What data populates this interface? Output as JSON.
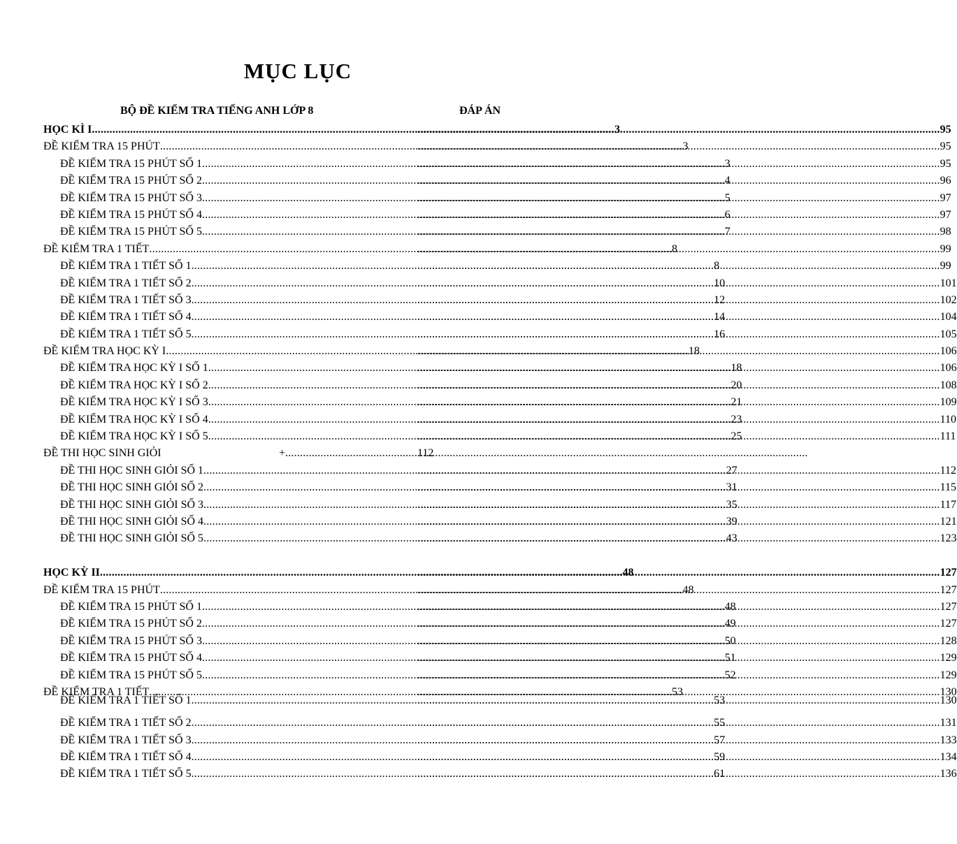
{
  "title": "MỤC LỤC",
  "header": {
    "left": "BỘ ĐỀ KIỂM TRA TIẾNG ANH LỚP 8",
    "right": "ĐÁP ÁN"
  },
  "rows": [
    {
      "label": "HỌC KÌ I ",
      "page": "3",
      "answer": "95",
      "bold": true
    },
    {
      "label": "ĐỀ KIỂM TRA 15 PHÚT",
      "page": "3",
      "answer": "95"
    },
    {
      "label": "ĐỀ KIỂM TRA 15 PHÚT SỐ 1 ",
      "page": "3",
      "answer": "95",
      "indent": true
    },
    {
      "label": "ĐỀ KIỂM TRA 15 PHÚT SỐ 2 ",
      "page": "4",
      "answer": "96",
      "indent": true
    },
    {
      "label": "ĐỀ KIỂM TRA 15 PHÚT SỐ 3 ",
      "page": "5",
      "answer": "97",
      "indent": true
    },
    {
      "label": "ĐỀ KIỂM TRA 15 PHÚT SỐ 4 ",
      "page": "6",
      "answer": "97",
      "indent": true
    },
    {
      "label": "ĐỀ KIỂM TRA 15 PHÚT SỐ 5 ",
      "page": "7",
      "answer": "98",
      "indent": true
    },
    {
      "label": "ĐỀ KIỂM TRA 1 TIẾT ",
      "page": "8",
      "answer": "99"
    },
    {
      "label": "ĐỀ KIỂM TRA 1 TIẾT SỐ 1  ",
      "page": "8",
      "answer": "99",
      "indent": true
    },
    {
      "label": "ĐỀ KIỂM TRA 1 TIẾT SỐ 2  ",
      "page": "10",
      "answer": "101",
      "indent": true
    },
    {
      "label": "ĐỀ KIỂM TRA 1 TIẾT SỐ 3  ",
      "page": "12",
      "answer": "102",
      "indent": true
    },
    {
      "label": "ĐỀ KIỂM TRA 1 TIẾT SỐ 4  ",
      "page": "14",
      "answer": "104",
      "indent": true
    },
    {
      "label": "ĐỀ KIỂM TRA 1 TIẾT SỐ 5  ",
      "page": "16",
      "answer": "105",
      "indent": true
    },
    {
      "label": "ĐỀ KIỂM TRA HỌC KỲ I",
      "page": "18",
      "answer": "106"
    },
    {
      "label": "ĐỀ KIỂM TRA HỌC KỲ I SỐ 1 ",
      "page": "18",
      "answer": "106",
      "indent": true
    },
    {
      "label": "ĐỀ KIỂM TRA HỌC KỲ I SỐ 2 ",
      "page": "20",
      "answer": "108",
      "indent": true
    },
    {
      "label": "ĐỀ KIỂM TRA HỌC KỲ I SỐ 3 ",
      "page": "21",
      "answer": "109",
      "indent": true
    },
    {
      "label": "ĐỀ KIỂM TRA HỌC KỲ I SỐ 4 ",
      "page": "23",
      "answer": "110",
      "indent": true
    },
    {
      "label": "ĐỀ KIỂM TRA HỌC KỲ I SỐ 5 ",
      "page": "25",
      "answer": "111",
      "indent": true
    },
    {
      "label": "ĐỀ THI HỌC SINH GIỎI",
      "plus": "+",
      "answer": "112",
      "special": true
    },
    {
      "label": "ĐỀ THI HỌC SINH GIỎI SỐ 1 ",
      "page": "27",
      "answer": "112",
      "indent": true
    },
    {
      "label": "ĐỀ THI HỌC SINH GIỎI SỐ 2 ",
      "page": "31",
      "answer": "115",
      "indent": true
    },
    {
      "label": "ĐỀ THI HỌC SINH GIỎI SỐ 3 ",
      "page": "35",
      "answer": "117",
      "indent": true
    },
    {
      "label": "ĐỀ THI HỌC SINH GIỎI SỐ 4 ",
      "page": "39",
      "answer": "121",
      "indent": true
    },
    {
      "label": "ĐỀ THI HỌC SINH GIỎI SỐ 5 ",
      "page": "43",
      "answer": "123",
      "indent": true
    },
    {
      "gap": true
    },
    {
      "label": "HỌC KỲ II ",
      "page": "48",
      "answer": "127",
      "bold": true
    },
    {
      "label": "ĐỀ KIỂM TRA 15 PHÚT",
      "page": "48",
      "answer": "127"
    },
    {
      "label": "ĐỀ KIỂM TRA 15 PHÚT SỐ 1 ",
      "page": "48",
      "answer": "127",
      "indent": true
    },
    {
      "label": "ĐỀ KIỂM TRA 15 PHÚT SỐ 2 ",
      "page": "49",
      "answer": "127",
      "indent": true
    },
    {
      "label": "ĐỀ KIỂM TRA 15 PHÚT SỐ 3 ",
      "page": "50",
      "answer": "128",
      "indent": true
    },
    {
      "label": "ĐỀ KIỂM TRA 15 PHÚT SỐ 4 ",
      "page": "51",
      "answer": "129",
      "indent": true
    },
    {
      "label": "ĐỀ KIỂM TRA 15 PHÚT SỐ 5 ",
      "page": "52",
      "answer": "129",
      "indent": true
    },
    {
      "label": "ĐỀ KIỂM TRA 1 TIẾT ",
      "page": "53",
      "answer": "130"
    },
    {
      "label": "ĐỀ KIỂM TRA 1 TIẾT SỐ 1  ",
      "page": "53",
      "answer": "130",
      "indent": true,
      "clipped": true
    },
    {
      "label": "ĐỀ KIỂM TRA 1 TIẾT SỐ 2  ",
      "page": "55",
      "answer": "131",
      "indent": true
    },
    {
      "label": "ĐỀ KIỂM TRA 1 TIẾT SỐ 3  ",
      "page": "57",
      "answer": "133",
      "indent": true
    },
    {
      "label": "ĐỀ KIỂM TRA 1 TIẾT SỐ 4  ",
      "page": "59",
      "answer": "134",
      "indent": true
    },
    {
      "label": "ĐỀ KIỂM TRA 1 TIẾT SỐ 5  ",
      "page": "61",
      "answer": "136",
      "indent": true
    }
  ]
}
